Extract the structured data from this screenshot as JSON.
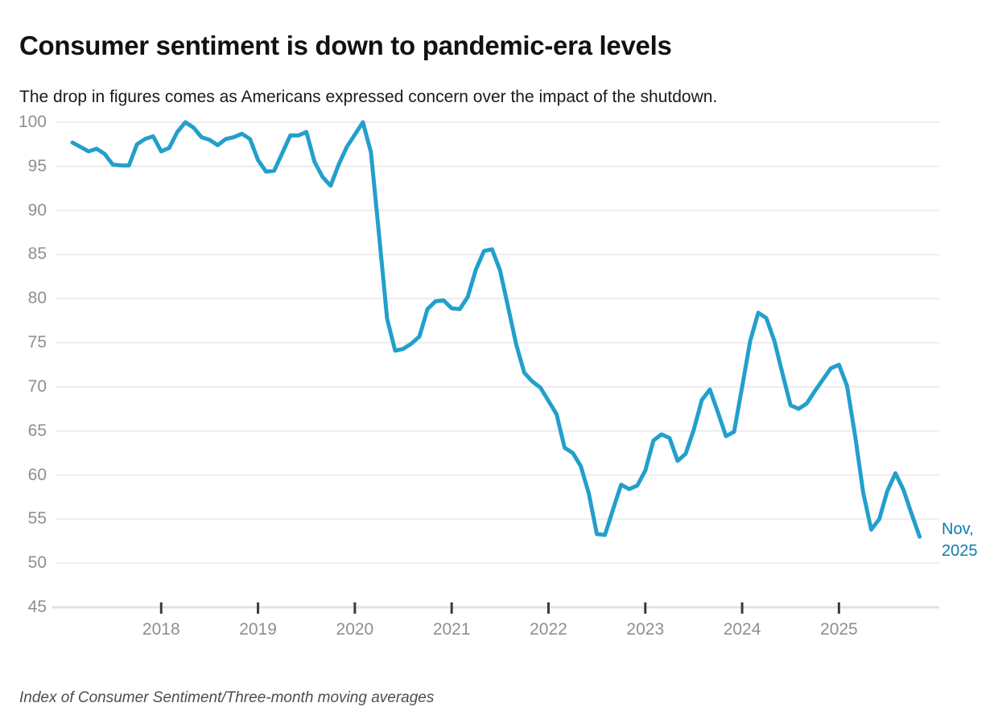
{
  "header": {
    "title": "Consumer sentiment is down to pandemic-era levels",
    "subtitle": "The drop in figures comes as Americans expressed concern over the impact of the shutdown."
  },
  "chart_data": {
    "type": "line",
    "series_name": "Index of Consumer Sentiment, three-month moving average",
    "frequency": "monthly",
    "x_start": "2017-02",
    "x_end": "2025-11",
    "values": [
      97.7,
      97.2,
      96.7,
      97.0,
      96.4,
      95.2,
      95.1,
      95.1,
      97.5,
      98.1,
      98.4,
      96.7,
      97.1,
      98.9,
      100.0,
      99.4,
      98.3,
      98.0,
      97.4,
      98.1,
      98.3,
      98.7,
      98.1,
      95.7,
      94.4,
      94.5,
      96.5,
      98.5,
      98.5,
      98.9,
      95.5,
      93.8,
      92.8,
      95.2,
      97.2,
      98.6,
      100.0,
      96.6,
      87.3,
      77.7,
      74.1,
      74.3,
      74.9,
      75.7,
      78.8,
      79.7,
      79.8,
      78.9,
      78.8,
      80.2,
      83.3,
      85.4,
      85.6,
      83.2,
      79.0,
      74.8,
      71.6,
      70.6,
      69.9,
      68.4,
      66.9,
      63.1,
      62.5,
      61.0,
      57.9,
      53.3,
      53.2,
      56.1,
      58.9,
      58.4,
      58.8,
      60.5,
      63.9,
      64.6,
      64.2,
      61.6,
      62.4,
      65.1,
      68.5,
      69.7,
      67.1,
      64.4,
      64.9,
      70.0,
      75.2,
      78.4,
      77.8,
      75.2,
      71.5,
      67.9,
      67.5,
      68.1,
      69.5,
      70.8,
      72.1,
      72.5,
      70.1,
      64.5,
      58.0,
      53.8,
      55.0,
      58.2,
      60.2,
      58.3,
      55.6,
      53.0
    ],
    "y_ticks": [
      100,
      95,
      90,
      85,
      80,
      75,
      70,
      65,
      60,
      55,
      50,
      45
    ],
    "ylim": [
      45,
      100
    ],
    "x_tick_labels": [
      "2018",
      "2019",
      "2020",
      "2021",
      "2022",
      "2023",
      "2024",
      "2025"
    ],
    "grid": "horizontal",
    "legend": "none",
    "end_annotation": "Nov, 2025"
  },
  "annotation": {
    "line1": "Nov,",
    "line2": "2025"
  },
  "footer": {
    "source_note": "Index of Consumer Sentiment/Three-month moving averages"
  },
  "colors": {
    "line": "#239fcb",
    "annotation": "#0f7dae",
    "grid": "#ececec",
    "axis_line": "#e3e3e3",
    "tick_mark": "#3a3a3a",
    "axis_label": "#8f8f8f",
    "title": "#111111",
    "subtitle": "#1a1a1a",
    "source": "#4d4d4d"
  }
}
